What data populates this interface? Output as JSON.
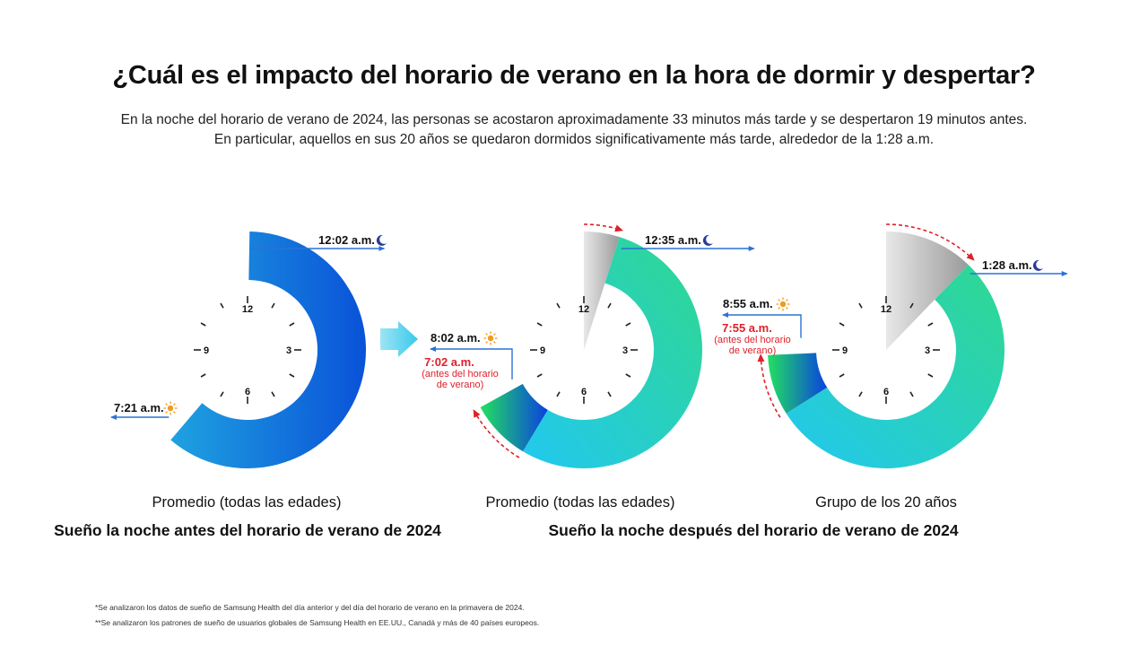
{
  "title": "¿Cuál es el impacto del horario de verano en la hora de dormir y despertar?",
  "subtitle_line1": "En la noche del horario de verano de 2024, las personas se acostaron aproximadamente 33 minutos más tarde y se despertaron 19 minutos antes.",
  "subtitle_line2": "En particular, aquellos en sus 20 años se quedaron dormidos significativamente más tarde, alrededor de la 1:28 a.m.",
  "clock_labels": [
    "12",
    "3",
    "6",
    "9"
  ],
  "colors": {
    "blue_start": "#1fa2e0",
    "blue_end": "#0a52d8",
    "teal_start": "#22c8ef",
    "teal_end": "#2fd88f",
    "green_start": "#22e060",
    "green_end": "#0a40e0",
    "gray_light": "#e8e8e8",
    "gray_dark": "#9a9a9a",
    "arrow_blue": "#2a72d6",
    "arrow_red": "#e0202a",
    "moon": "#2a3a9a",
    "sun": "#f29a1a",
    "pre_dst_label": "#e0202a"
  },
  "chart_data": [
    {
      "type": "clock-ring",
      "caption": "Promedio (todas las edades)",
      "sleep_time": "12:02 a.m.",
      "sleep_minutes_after_midnight": 2,
      "wake_time": "7:21 a.m.",
      "wake_minutes_after_midnight": 441
    },
    {
      "type": "clock-ring",
      "caption": "Promedio (todas las edades)",
      "sleep_time": "12:35 a.m.",
      "sleep_minutes_after_midnight": 35,
      "wake_time": "8:02 a.m.",
      "wake_minutes_after_midnight": 482,
      "wake_pre_dst": "7:02 a.m.",
      "wake_pre_dst_note": "(antes del horario de verano)",
      "wake_pre_dst_note_lines": [
        "(antes del horario",
        "de verano)"
      ]
    },
    {
      "type": "clock-ring",
      "caption": "Grupo de los 20 años",
      "sleep_time": "1:28 a.m.",
      "sleep_minutes_after_midnight": 88,
      "wake_time": "8:55 a.m.",
      "wake_minutes_after_midnight": 535,
      "wake_pre_dst": "7:55 a.m.",
      "wake_pre_dst_note": "(antes del horario de verano)",
      "wake_pre_dst_note_lines": [
        "(antes del horario",
        "de verano)"
      ]
    }
  ],
  "section_before": "Sueño la noche antes del horario de verano de 2024",
  "section_after": "Sueño la noche después del horario de verano de 2024",
  "footnote1": "*Se analizaron los datos de sueño de Samsung Health del día anterior y del día del horario de verano en la primavera de 2024.",
  "footnote2": "**Se analizaron los patrones de sueño de usuarios globales de Samsung Health en EE.UU., Canadá y más de 40 países europeos."
}
